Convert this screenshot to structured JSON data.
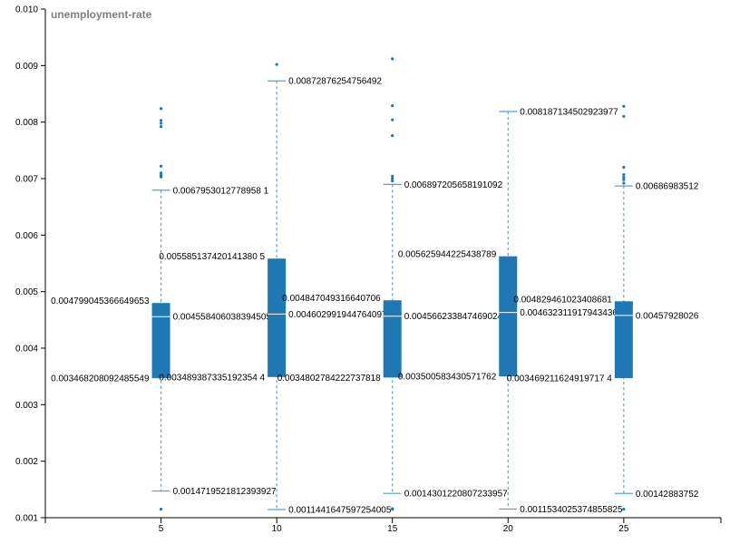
{
  "chart_data": {
    "type": "boxplot",
    "title": "unemployment-rate",
    "ylim": [
      0.001,
      0.01
    ],
    "y_ticks": [
      "0.001",
      "0.002",
      "0.003",
      "0.004",
      "0.005",
      "0.006",
      "0.007",
      "0.008",
      "0.009",
      "0.010"
    ],
    "x_ticks": [
      "5",
      "10",
      "15",
      "20",
      "25"
    ],
    "color": "#1f77b4",
    "median_color": "#ffffff",
    "whisker_color": "#5a9fd4",
    "boxes": [
      {
        "x": 5,
        "q1": 0.00346820809248554,
        "median": 0.00455840603839451,
        "q3": 0.00479904536664965,
        "whisker_low": 0.00147195218123939,
        "whisker_high": 0.00679530127789581,
        "labels": {
          "q1": "0.003468208092485549",
          "median": "0.004558406038394505 5",
          "q3": "0.004799045366649653",
          "whisker_low": "0.0014719521812393927",
          "whisker_high": "0.0067953012778958 1"
        },
        "outliers": [
          0.00115,
          0.00703,
          0.00706,
          0.0071,
          0.00722,
          0.00792,
          0.00798,
          0.00803,
          0.00824
        ]
      },
      {
        "x": 10,
        "q1": 0.00348938733519235,
        "median": 0.0046029919447641,
        "q3": 0.00558513742014138,
        "whisker_low": 0.0011441647597254,
        "whisker_high": 0.00872876254756492,
        "labels": {
          "q1": "0.003489387335192354 4",
          "median": "0.004602991944764097",
          "q3": "0.005585137420141380 5",
          "whisker_low": "0.0011441647597254005",
          "whisker_high": "0.00872876254756492"
        },
        "outliers": [
          0.00902
        ]
      },
      {
        "x": 15,
        "q1": 0.00348027842227378,
        "median": 0.00456623384746902,
        "q3": 0.00484704931664071,
        "whisker_low": 0.0014301220807234,
        "whisker_high": 0.00689720565819109,
        "labels": {
          "q1": "0.0034802784222737818",
          "median": "0.004566233847469024",
          "q3": "0.004847049316640706",
          "whisker_low": "0.0014301220807233957",
          "whisker_high": "0.006897205658191092"
        },
        "outliers": [
          0.00115,
          0.00116,
          0.00696,
          0.007,
          0.00704,
          0.00776,
          0.00804,
          0.00829,
          0.00912
        ]
      },
      {
        "x": 20,
        "q1": 0.00350058343057176,
        "median": 0.00463231191794344,
        "q3": 0.00562594422543878,
        "whisker_low": 0.00115340253748558,
        "whisker_high": 0.00818713450292398,
        "labels": {
          "q1": "0.003500583430571762",
          "median": "0.004632311917943436",
          "q3": "0.005625944225438789",
          "whisker_low": "0.0011534025374855825",
          "whisker_high": "0.008187134502923977"
        },
        "outliers": []
      },
      {
        "x": 25,
        "q1": 0.00346921162491972,
        "median": 0.00457928026,
        "q3": 0.00482946102340868,
        "whisker_low": 0.00142883752,
        "whisker_high": 0.00686983512,
        "labels": {
          "q1": "0.003469211624919717 4",
          "median": "0.00457928026",
          "q3": "0.004829461023408681",
          "whisker_low": "0.00142883752",
          "whisker_high": "0.00686983512"
        },
        "outliers": [
          0.00115,
          0.00692,
          0.00698,
          0.00702,
          0.00707,
          0.0072,
          0.0081,
          0.00828
        ]
      }
    ]
  }
}
